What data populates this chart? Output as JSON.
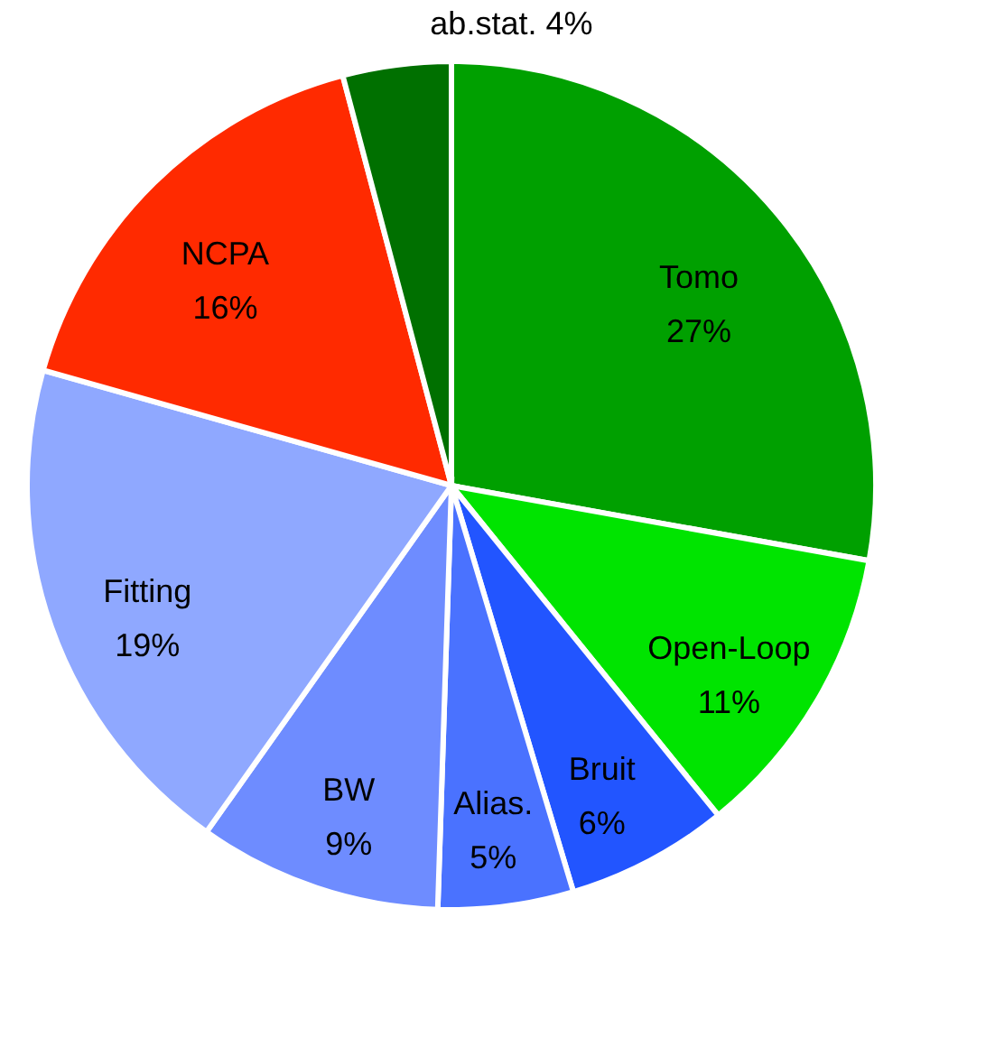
{
  "chart_data": {
    "type": "pie",
    "categories": [
      "Tomo",
      "Open-Loop",
      "Bruit",
      "Alias.",
      "BW",
      "Fitting",
      "NCPA",
      "ab.stat."
    ],
    "values": [
      27,
      11,
      6,
      5,
      9,
      19,
      16,
      4
    ],
    "value_labels": [
      "27%",
      "11%",
      "6%",
      "5%",
      "9%",
      "19%",
      "16%",
      "4%"
    ],
    "colors": [
      "#00a000",
      "#00e400",
      "#2255ff",
      "#4a72ff",
      "#6e8cff",
      "#8fa8ff",
      "#ff2a00",
      "#007000"
    ]
  }
}
